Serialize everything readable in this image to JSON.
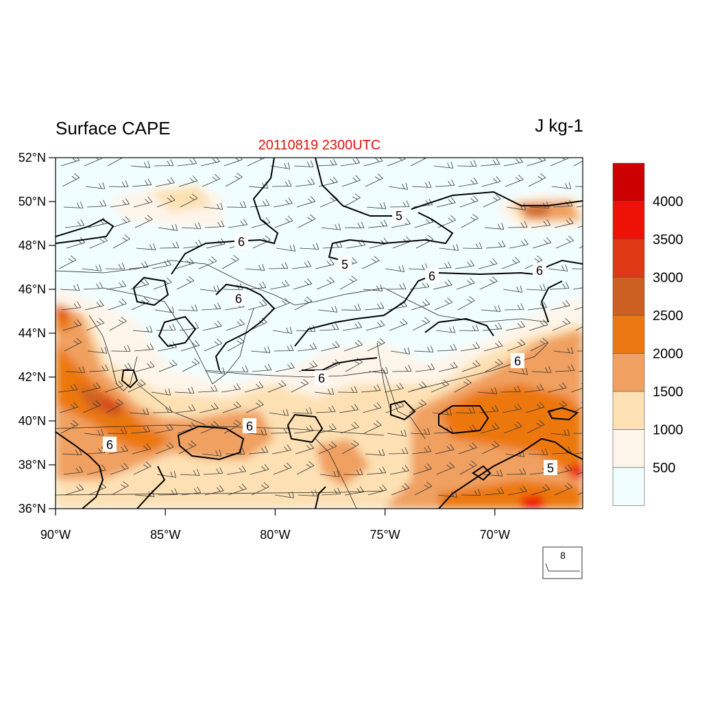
{
  "title": "Surface CAPE",
  "units": "J kg-1",
  "subtitle": "20110819 2300UTC",
  "map": {
    "lon_range": [
      -90,
      -66
    ],
    "lat_range": [
      36,
      52
    ],
    "lat_ticks": [
      "52°N",
      "50°N",
      "48°N",
      "46°N",
      "44°N",
      "42°N",
      "40°N",
      "38°N",
      "36°N"
    ],
    "lon_ticks": [
      "90°W",
      "85°W",
      "80°W",
      "75°W",
      "70°W"
    ]
  },
  "colorbar": {
    "labels": [
      "4000",
      "3500",
      "3000",
      "2500",
      "2000",
      "1500",
      "1000",
      "500"
    ],
    "colors": [
      "#cc0000",
      "#ee1106",
      "#dd3a15",
      "#cc6022",
      "#ec7811",
      "#f0a060",
      "#fde1b4",
      "#fef5ea",
      "#f0feff"
    ]
  },
  "contour_labels": [
    "6",
    "5",
    "5",
    "6",
    "6",
    "6",
    "6",
    "6",
    "6",
    "6",
    "5"
  ],
  "reference_vector": {
    "label": "8"
  }
}
